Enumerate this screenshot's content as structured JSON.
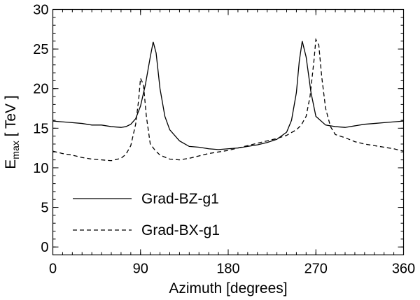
{
  "chart_data": {
    "type": "line",
    "title": "",
    "xlabel": "Azimuth [degrees]",
    "ylabel_main": "E",
    "ylabel_sub": "max",
    "ylabel_unit": " [ TeV ]",
    "xlim": [
      0,
      360
    ],
    "ylim": [
      -1,
      30
    ],
    "xticks": [
      0,
      90,
      180,
      270,
      360
    ],
    "yticks": [
      0,
      5,
      10,
      15,
      20,
      25,
      30
    ],
    "x_minor_step": 10,
    "y_minor_step": 1,
    "grid": false,
    "legend_position": "bottom-left",
    "series": [
      {
        "name": "Grad-BZ-g1",
        "style": "solid",
        "x": [
          0,
          10,
          20,
          30,
          40,
          50,
          60,
          70,
          75,
          80,
          85,
          90,
          95,
          100,
          103,
          106,
          110,
          115,
          120,
          130,
          140,
          150,
          160,
          170,
          180,
          190,
          200,
          210,
          220,
          230,
          240,
          245,
          250,
          253,
          256,
          260,
          265,
          270,
          280,
          290,
          300,
          310,
          320,
          330,
          340,
          350,
          360
        ],
        "y": [
          15.9,
          15.8,
          15.7,
          15.6,
          15.4,
          15.4,
          15.2,
          15.1,
          15.2,
          15.5,
          16.2,
          17.8,
          20.5,
          24.0,
          25.9,
          24.5,
          20.0,
          16.5,
          14.8,
          13.4,
          12.7,
          12.6,
          12.4,
          12.3,
          12.4,
          12.5,
          12.7,
          12.9,
          13.2,
          13.6,
          14.5,
          16.0,
          19.5,
          23.5,
          26.0,
          24.0,
          19.5,
          16.5,
          15.4,
          15.2,
          15.1,
          15.3,
          15.5,
          15.6,
          15.7,
          15.8,
          15.9
        ]
      },
      {
        "name": "Grad-BX-g1",
        "style": "dashed",
        "x": [
          0,
          10,
          20,
          30,
          40,
          50,
          60,
          70,
          75,
          80,
          85,
          88,
          90,
          93,
          96,
          100,
          105,
          110,
          120,
          130,
          140,
          150,
          160,
          170,
          180,
          190,
          200,
          210,
          220,
          230,
          240,
          250,
          255,
          260,
          264,
          268,
          270,
          273,
          276,
          280,
          285,
          290,
          300,
          310,
          320,
          330,
          340,
          350,
          360
        ],
        "y": [
          12.1,
          11.8,
          11.6,
          11.3,
          11.1,
          11.0,
          10.9,
          11.2,
          11.7,
          12.8,
          15.5,
          18.5,
          21.3,
          20.5,
          16.5,
          13.0,
          12.2,
          11.6,
          11.1,
          11.0,
          11.2,
          11.5,
          11.8,
          12.0,
          12.2,
          12.5,
          12.8,
          13.1,
          13.4,
          13.7,
          14.1,
          14.8,
          15.4,
          16.5,
          19.0,
          23.5,
          26.2,
          25.5,
          21.5,
          17.5,
          15.2,
          14.2,
          13.8,
          13.3,
          13.0,
          12.8,
          12.6,
          12.4,
          12.1
        ]
      }
    ]
  }
}
